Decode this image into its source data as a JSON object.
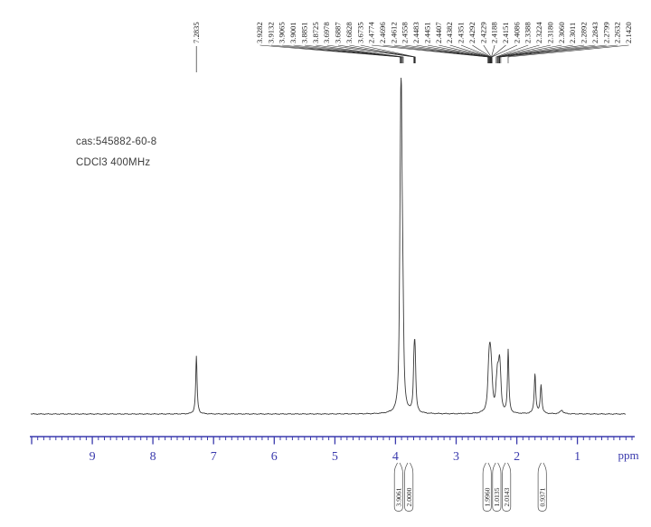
{
  "annotation": {
    "cas_line": "cas:545882-60-8",
    "solvent_line": "CDCl3 400MHz"
  },
  "chart_data": {
    "type": "line",
    "description": "1H NMR spectrum trace",
    "xlabel": "ppm",
    "x_axis": {
      "unit": "ppm",
      "tick_labels": [
        "9",
        "8",
        "7",
        "6",
        "5",
        "4",
        "3",
        "2",
        "1"
      ],
      "range_ppm": [
        10.0,
        0.1
      ],
      "reversed": true
    },
    "colors": {
      "axis": "#3a3aad",
      "trace": "#3a3a3a",
      "labels": "#1c1c1c"
    },
    "solvent_peak": {
      "label": "7.2835",
      "ppm": 7.2835
    },
    "peak_label_groups": [
      {
        "labels": [
          "3.9282",
          "3.9132",
          "3.9065",
          "3.9001",
          "3.8851",
          "3.8725"
        ]
      },
      {
        "labels": [
          "3.6978",
          "3.6887",
          "3.6828",
          "3.6735"
        ]
      },
      {
        "labels": [
          "2.4774",
          "2.4696",
          "2.4612",
          "2.4558",
          "2.4483",
          "2.4451",
          "2.4407",
          "2.4382",
          "2.4351",
          "2.4292",
          "2.4229",
          "2.4188",
          "2.4151",
          "2.4086"
        ]
      },
      {
        "labels": [
          "2.3388",
          "2.3224",
          "2.3180",
          "2.3060",
          "2.3011",
          "2.2892",
          "2.2843",
          "2.2799",
          "2.2632"
        ]
      },
      {
        "labels": [
          "2.1420"
        ]
      }
    ],
    "peaks": [
      {
        "ppm": 7.2835,
        "i": 64,
        "w": 0.9
      },
      {
        "ppm": 3.928,
        "i": 55,
        "w": 0.8
      },
      {
        "ppm": 3.916,
        "i": 150,
        "w": 0.9
      },
      {
        "ppm": 3.904,
        "i": 250,
        "w": 1.0
      },
      {
        "ppm": 3.8851,
        "i": 80,
        "w": 0.9
      },
      {
        "ppm": 3.8725,
        "i": 38,
        "w": 0.8
      },
      {
        "ppm": 3.6978,
        "i": 22,
        "w": 0.8
      },
      {
        "ppm": 3.689,
        "i": 33,
        "w": 1.0
      },
      {
        "ppm": 3.68,
        "i": 33,
        "w": 1.0
      },
      {
        "ppm": 3.6735,
        "i": 20,
        "w": 0.8
      },
      {
        "ppm": 2.47,
        "i": 10,
        "w": 1.0
      },
      {
        "ppm": 2.459,
        "i": 20,
        "w": 1.2
      },
      {
        "ppm": 2.447,
        "i": 32,
        "w": 1.5
      },
      {
        "ppm": 2.433,
        "i": 30,
        "w": 1.6
      },
      {
        "ppm": 2.42,
        "i": 16,
        "w": 1.3
      },
      {
        "ppm": 2.409,
        "i": 7,
        "w": 1.0
      },
      {
        "ppm": 2.3388,
        "i": 13,
        "w": 0.9
      },
      {
        "ppm": 2.32,
        "i": 29,
        "w": 1.1
      },
      {
        "ppm": 2.303,
        "i": 18,
        "w": 1.2
      },
      {
        "ppm": 2.287,
        "i": 30,
        "w": 1.1
      },
      {
        "ppm": 2.276,
        "i": 21,
        "w": 1.1
      },
      {
        "ppm": 2.2632,
        "i": 10,
        "w": 0.9
      },
      {
        "ppm": 2.142,
        "i": 70,
        "w": 0.9
      },
      {
        "ppm": 1.7,
        "i": 44,
        "w": 1.0
      },
      {
        "ppm": 1.6,
        "i": 32,
        "w": 1.0
      },
      {
        "ppm": 1.26,
        "i": 4,
        "w": 2.0
      }
    ],
    "integrals": [
      {
        "value": "3.9061",
        "ppm": 3.95
      },
      {
        "value": "2.0000",
        "ppm": 3.78
      },
      {
        "value": "1.9960",
        "ppm": 2.49
      },
      {
        "value": "1.0135",
        "ppm": 2.33
      },
      {
        "value": "2.0143",
        "ppm": 2.17
      },
      {
        "value": "0.9371",
        "ppm": 1.58
      }
    ]
  }
}
